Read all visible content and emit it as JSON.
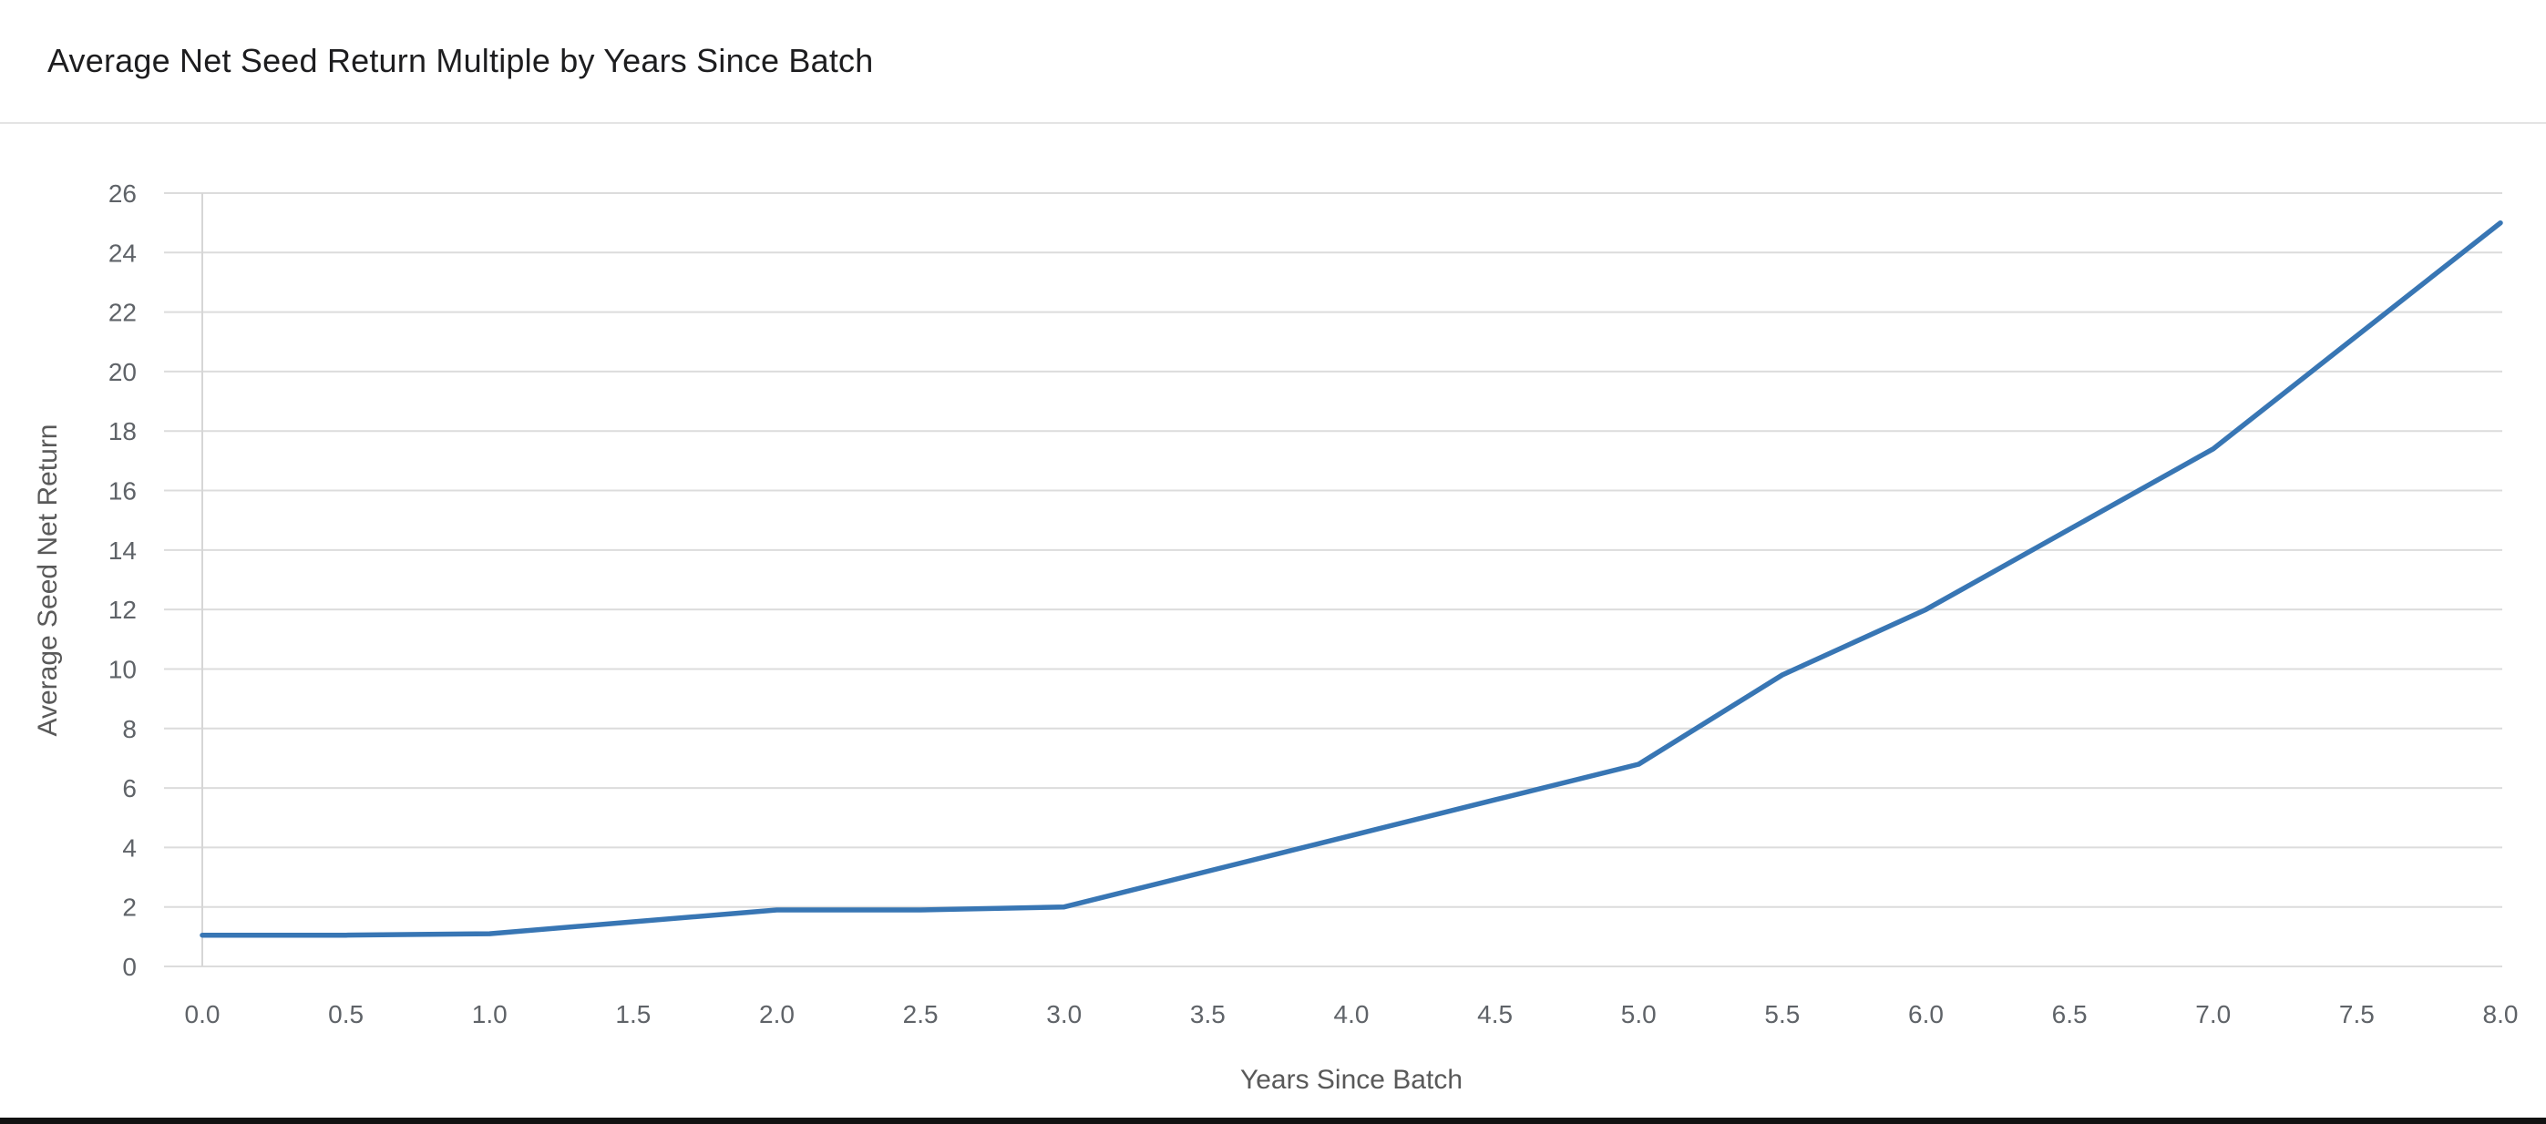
{
  "header": {
    "title": "Average Net Seed Return Multiple by Years Since Batch"
  },
  "chart_data": {
    "type": "line",
    "title": "Average Net Seed Return Multiple by Years Since Batch",
    "xlabel": "Years Since Batch",
    "ylabel": "Average Seed Net Return",
    "x": [
      0.0,
      0.5,
      1.0,
      1.5,
      2.0,
      2.5,
      3.0,
      3.5,
      4.0,
      4.5,
      5.0,
      5.5,
      6.0,
      6.5,
      7.0,
      7.5,
      8.0
    ],
    "values": [
      1.05,
      1.05,
      1.1,
      1.5,
      1.9,
      1.9,
      2.0,
      3.2,
      4.4,
      5.6,
      6.8,
      9.8,
      12.0,
      14.7,
      17.4,
      21.2,
      25.0
    ],
    "x_tick_labels": [
      "0.0",
      "0.5",
      "1.0",
      "1.5",
      "2.0",
      "2.5",
      "3.0",
      "3.5",
      "4.0",
      "4.5",
      "5.0",
      "5.5",
      "6.0",
      "6.5",
      "7.0",
      "7.5",
      "8.0"
    ],
    "y_ticks": [
      0,
      2,
      4,
      6,
      8,
      10,
      12,
      14,
      16,
      18,
      20,
      22,
      24,
      26
    ],
    "xlim": [
      0,
      8
    ],
    "ylim": [
      0,
      26
    ],
    "grid": "horizontal-only",
    "legend": "none",
    "series_name": "Average Seed Net Return",
    "colors": {
      "line": "#3876b4",
      "grid": "#dcdcdc",
      "axis_spine": "#d6d6d6",
      "tick_text": "#5f6368",
      "axis_title_text": "#595959",
      "title_text": "#1d1d1f",
      "divider": "#e4e4e4",
      "background": "#ffffff",
      "bottom_bar": "#121212"
    }
  }
}
